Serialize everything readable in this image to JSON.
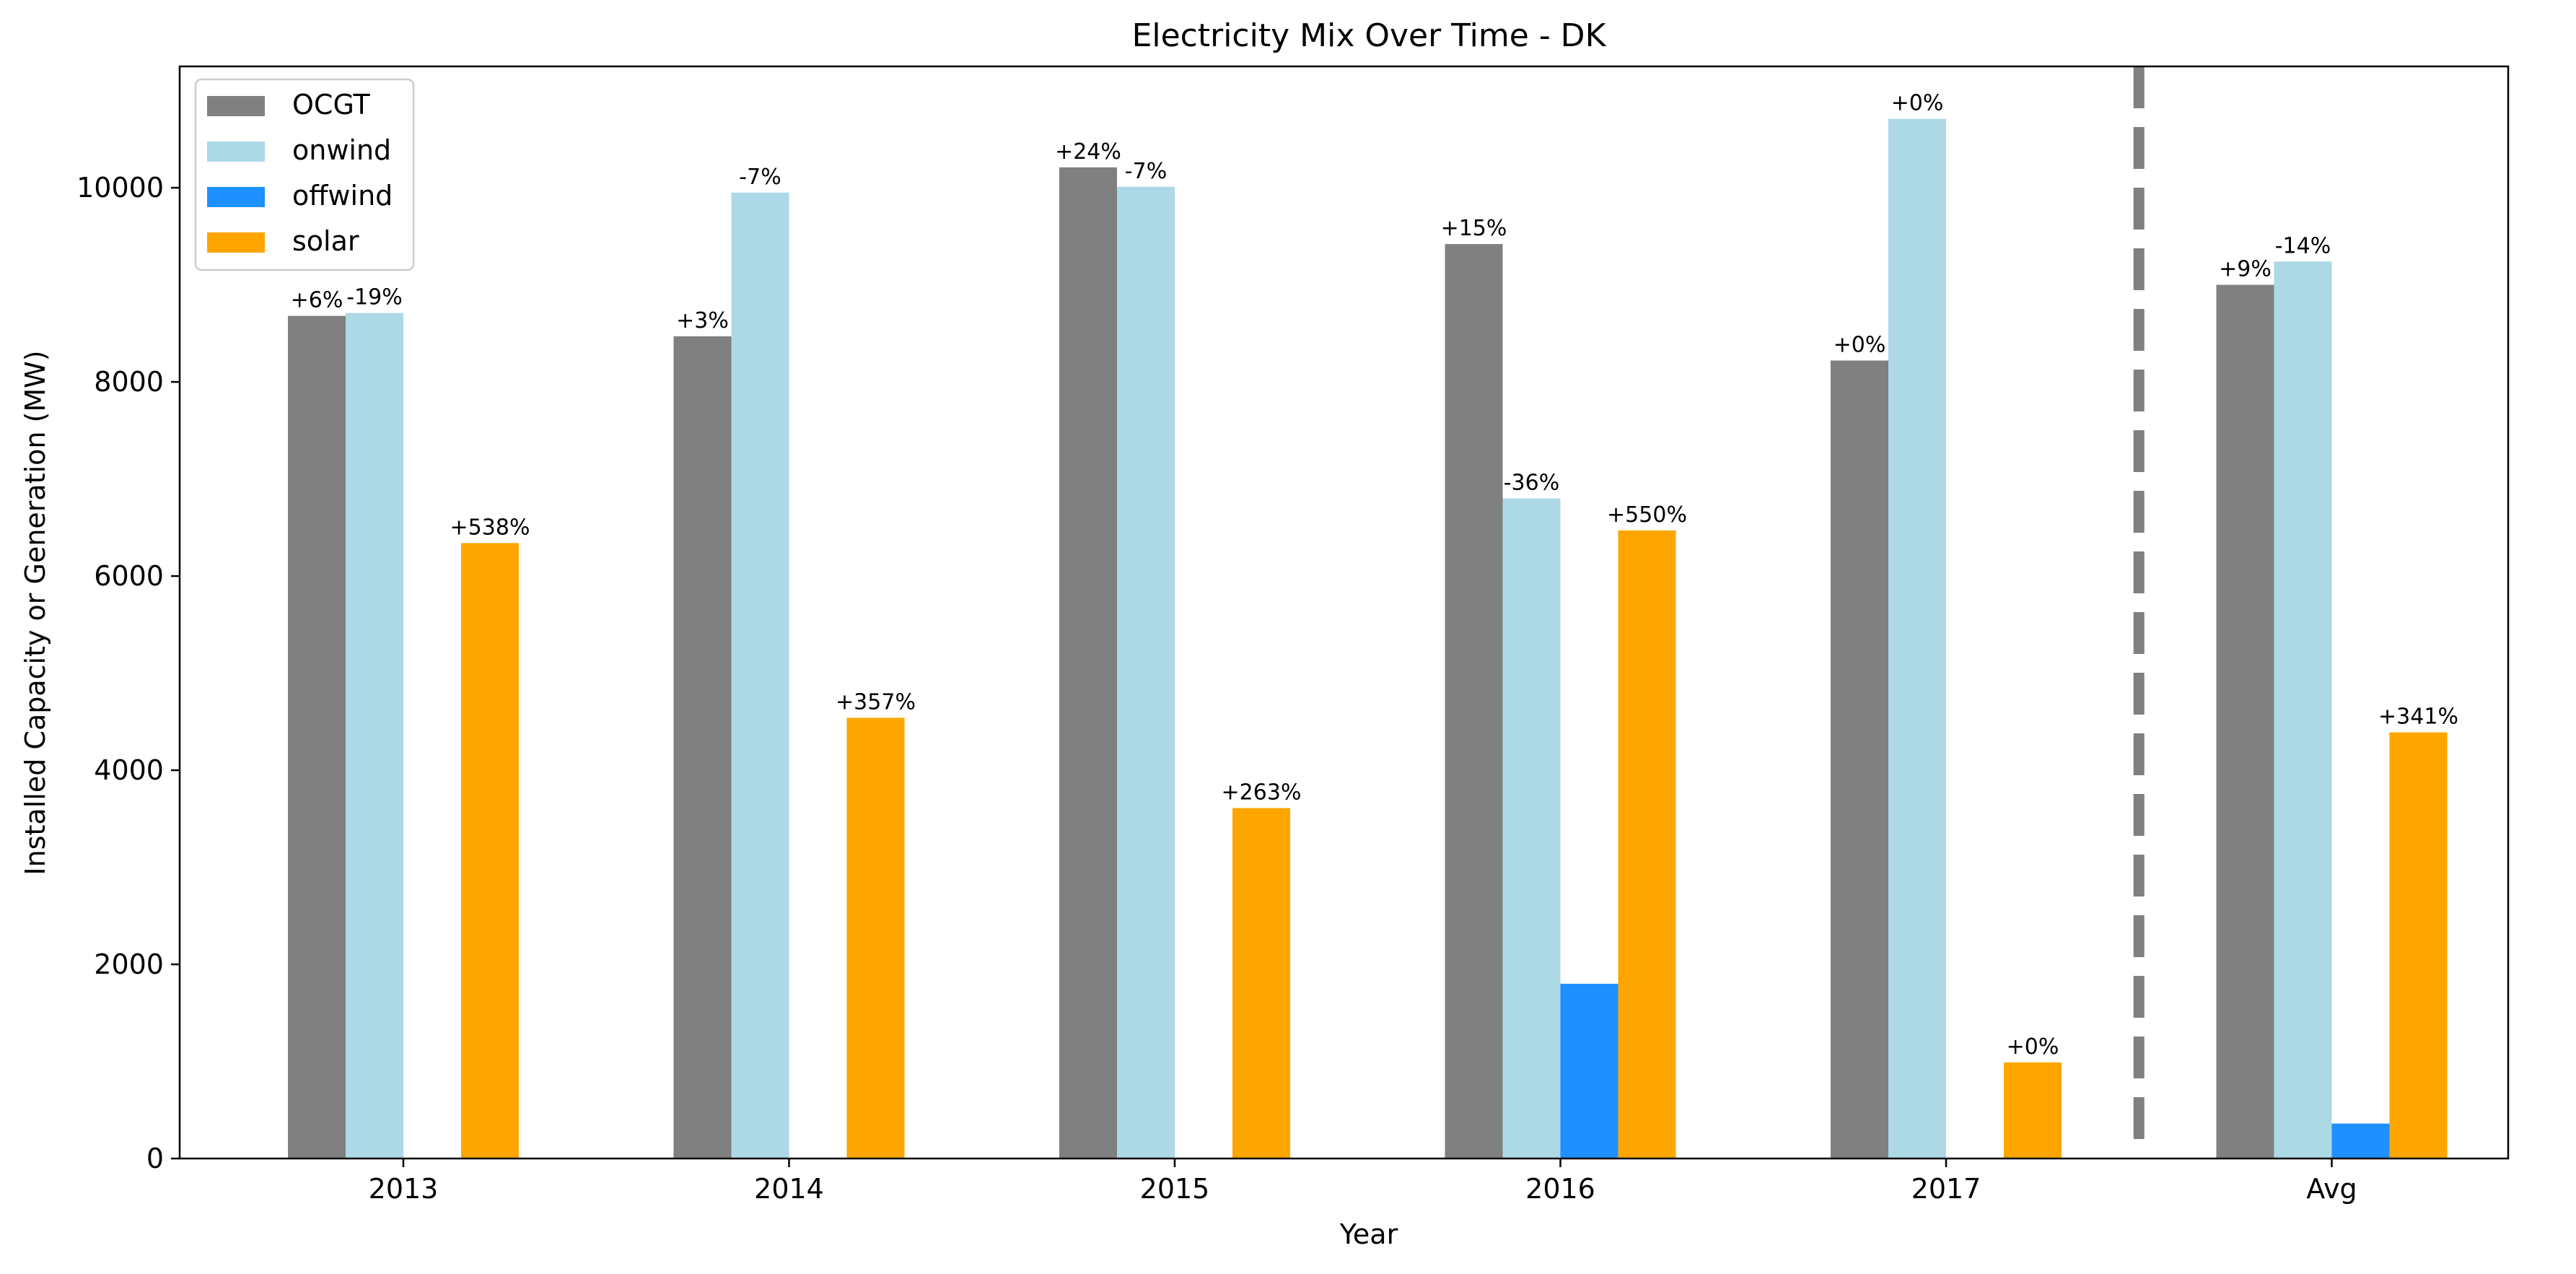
{
  "chart_data": {
    "type": "bar",
    "title": "Electricity Mix Over Time - DK",
    "xlabel": "Year",
    "ylabel": "Installed Capacity or Generation (MW)",
    "categories": [
      "2013",
      "2014",
      "2015",
      "2016",
      "2017",
      "Avg"
    ],
    "ylim": [
      0,
      11250
    ],
    "yticks": [
      0,
      2000,
      4000,
      6000,
      8000,
      10000
    ],
    "grid": false,
    "legend_position": "top-left",
    "separator_before_category": "Avg",
    "series": [
      {
        "name": "OCGT",
        "color": "#808080",
        "values": [
          8680,
          8470,
          10210,
          9420,
          8220,
          9000
        ],
        "labels": [
          "+6%",
          "+3%",
          "+24%",
          "+15%",
          "+0%",
          "+9%"
        ]
      },
      {
        "name": "onwind",
        "color": "#add8e6",
        "values": [
          8710,
          9950,
          10010,
          6800,
          10710,
          9240
        ],
        "labels": [
          "-19%",
          "-7%",
          "-7%",
          "-36%",
          "+0%",
          "-14%"
        ]
      },
      {
        "name": "offwind",
        "color": "#1e90ff",
        "values": [
          0,
          0,
          0,
          1800,
          0,
          360
        ],
        "labels": [
          "",
          "",
          "",
          "",
          "",
          ""
        ]
      },
      {
        "name": "solar",
        "color": "#ffa500",
        "values": [
          6340,
          4540,
          3610,
          6470,
          990,
          4390
        ],
        "labels": [
          "+538%",
          "+357%",
          "+263%",
          "+550%",
          "+0%",
          "+341%"
        ]
      }
    ]
  }
}
